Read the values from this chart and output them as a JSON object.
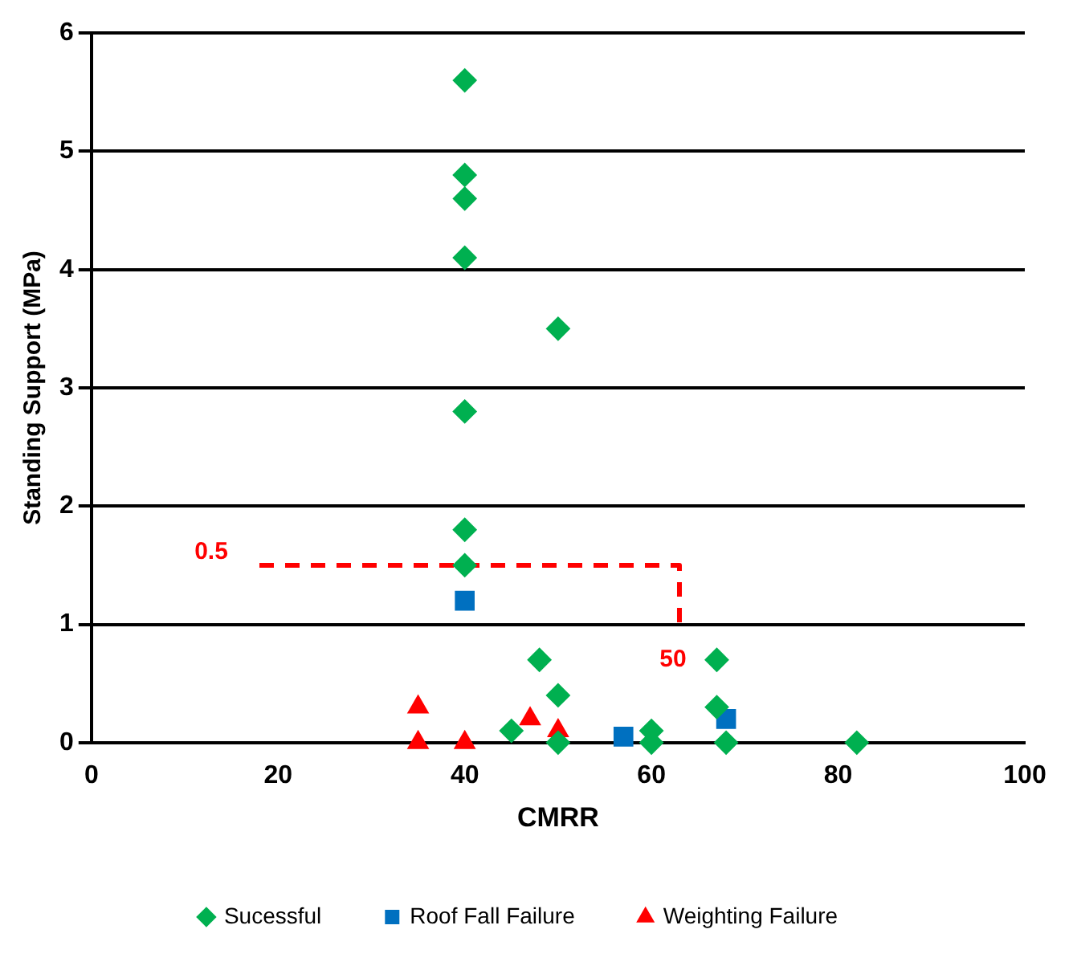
{
  "chart_data": {
    "type": "scatter",
    "xlabel": "CMRR",
    "ylabel": "Standing Support (MPa)",
    "xlim": [
      0,
      100
    ],
    "xticks": [
      0,
      20,
      40,
      60,
      80,
      100
    ],
    "ylim": [
      0,
      6
    ],
    "yticks": [
      0,
      1,
      2,
      3,
      4,
      5,
      6
    ],
    "grid": "y",
    "legend": "bottom",
    "series": [
      {
        "name": "Sucessful",
        "color": "#00b050",
        "marker": "diamond",
        "x": [
          40,
          40,
          40,
          40,
          40,
          40,
          40,
          50,
          48,
          50,
          45,
          50,
          60,
          60,
          67,
          67,
          68,
          82
        ],
        "values": [
          5.6,
          4.8,
          4.6,
          4.1,
          2.8,
          1.8,
          1.5,
          3.5,
          0.7,
          0.4,
          0.1,
          0,
          0.1,
          0,
          0.7,
          0.3,
          0,
          0
        ]
      },
      {
        "name": "Roof Fall Failure",
        "color": "#0070c0",
        "marker": "square",
        "x": [
          40,
          57,
          68
        ],
        "values": [
          1.2,
          0.05,
          0.2
        ]
      },
      {
        "name": "Weighting Failure",
        "color": "#ff0000",
        "marker": "triangle",
        "x": [
          35,
          35,
          40,
          47,
          50
        ],
        "values": [
          0.3,
          0,
          0,
          0.2,
          0.1
        ]
      },
      {
        "type": "line",
        "color": "#ff0000",
        "line_style": "dashed",
        "marker": "none",
        "x": [
          18,
          63,
          63
        ],
        "values": [
          1.5,
          1.5,
          1.0
        ]
      }
    ],
    "annotations": [
      "0.5",
      "50"
    ]
  }
}
